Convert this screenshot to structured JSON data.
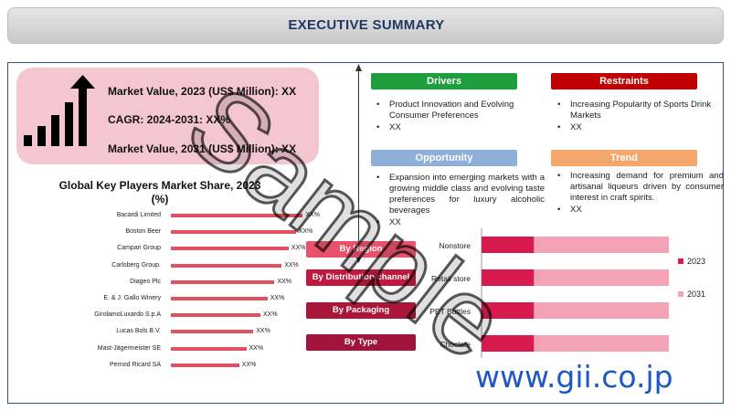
{
  "header": {
    "title": "EXECUTIVE SUMMARY"
  },
  "kpis": [
    "Market Value, 2023 (US$ Million): XX",
    "CAGR: 2024-2031: XX%",
    "Market Value, 2031 (US$ Million): XX"
  ],
  "drivers": {
    "title": "Drivers",
    "color": "#1e9e3c",
    "items": [
      "Product Innovation and Evolving Consumer Preferences",
      "XX"
    ]
  },
  "restraints": {
    "title": "Restraints",
    "color": "#c00000",
    "items": [
      "Increasing Popularity of Sports Drink Markets",
      "XX"
    ]
  },
  "opportunity": {
    "title": "Opportunity",
    "color": "#8fafd9",
    "items": [
      "Expansion into emerging markets with a growing middle class and evolving taste preferences for luxury alcoholic beverages",
      "XX"
    ]
  },
  "trend": {
    "title": "Trend",
    "color": "#f4a66b",
    "items": [
      "Increasing demand for premium and artisanal liqueurs driven by consumer interest in craft spirits.",
      "XX"
    ]
  },
  "players": {
    "title": "Global Key Players Market Share, 2023 (%)",
    "rows": [
      {
        "name": "Bacardi Limited",
        "value_label": "XX%",
        "share": 0.56
      },
      {
        "name": "Boston Beer",
        "value_label": "XX%",
        "share": 0.53
      },
      {
        "name": "Campari Group",
        "value_label": "XX%",
        "share": 0.5
      },
      {
        "name": "Carlsberg Group.",
        "value_label": "XX%",
        "share": 0.47
      },
      {
        "name": "Diageo Plc",
        "value_label": "XX%",
        "share": 0.44
      },
      {
        "name": "E. & J. Gallo Winery",
        "value_label": "XX%",
        "share": 0.41
      },
      {
        "name": "GirolamoLuxardo S.p.A",
        "value_label": "XX%",
        "share": 0.38
      },
      {
        "name": "Lucas Bols B.V.",
        "value_label": "XX%",
        "share": 0.35
      },
      {
        "name": "Mast-Jägermeister SE",
        "value_label": "XX%",
        "share": 0.32
      },
      {
        "name": "Pernod Ricard SA",
        "value_label": "XX%",
        "share": 0.29
      }
    ]
  },
  "segments": [
    {
      "label": "By Region",
      "color": "#e8526a"
    },
    {
      "label": "By Distribution channel",
      "color": "#c0183f"
    },
    {
      "label": "By Packaging",
      "color": "#a9163a"
    },
    {
      "label": "By Type",
      "color": "#a0143a"
    }
  ],
  "chart_data": {
    "type": "bar",
    "orientation": "horizontal",
    "stacked": true,
    "categories": [
      "Nonstore",
      "Retail store",
      "PET Bottles",
      "Choclate"
    ],
    "series": [
      {
        "name": "2023",
        "color": "#d81b4e",
        "values": [
          28,
          28,
          28,
          28
        ]
      },
      {
        "name": "2031",
        "color": "#f4a3b6",
        "values": [
          72,
          72,
          72,
          72
        ]
      }
    ],
    "legend_position": "right"
  },
  "watermark": "Sample",
  "site_url": "www.gii.co.jp"
}
